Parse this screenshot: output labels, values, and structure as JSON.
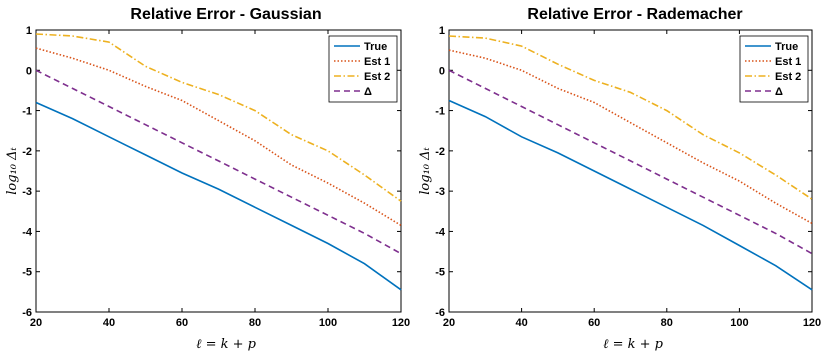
{
  "colors": {
    "True": "#0072BD",
    "Est 1": "#D95319",
    "Est 2": "#EDB120",
    "Δ": "#7E2F8E"
  },
  "chart_data": [
    {
      "type": "line",
      "title": "Relative Error - Gaussian",
      "xlabel": "ℓ = k + p",
      "ylabel": "log₁₀ Δₜ",
      "xlim": [
        20,
        120
      ],
      "ylim": [
        -6,
        1
      ],
      "xticks": [
        20,
        40,
        60,
        80,
        100,
        120
      ],
      "yticks": [
        1,
        0,
        -1,
        -2,
        -3,
        -4,
        -5,
        -6
      ],
      "grid": false,
      "legend_position": "top-right",
      "x": [
        20,
        30,
        40,
        50,
        60,
        70,
        80,
        90,
        100,
        110,
        120
      ],
      "series": [
        {
          "name": "True",
          "values": [
            -0.8,
            -1.2,
            -1.65,
            -2.1,
            -2.55,
            -2.95,
            -3.4,
            -3.85,
            -4.3,
            -4.8,
            -5.45
          ]
        },
        {
          "name": "Est 1",
          "values": [
            0.55,
            0.3,
            0.0,
            -0.4,
            -0.75,
            -1.25,
            -1.75,
            -2.35,
            -2.8,
            -3.3,
            -3.85
          ]
        },
        {
          "name": "Est 2",
          "values": [
            0.9,
            0.85,
            0.7,
            0.1,
            -0.3,
            -0.6,
            -1.0,
            -1.6,
            -2.0,
            -2.6,
            -3.25
          ]
        },
        {
          "name": "Δ",
          "values": [
            0.0,
            -0.45,
            -0.9,
            -1.35,
            -1.8,
            -2.25,
            -2.7,
            -3.15,
            -3.6,
            -4.05,
            -4.55
          ]
        }
      ]
    },
    {
      "type": "line",
      "title": "Relative Error - Rademacher",
      "xlabel": "ℓ = k + p",
      "ylabel": "log₁₀ Δₜ",
      "xlim": [
        20,
        120
      ],
      "ylim": [
        -6,
        1
      ],
      "xticks": [
        20,
        40,
        60,
        80,
        100,
        120
      ],
      "yticks": [
        1,
        0,
        -1,
        -2,
        -3,
        -4,
        -5,
        -6
      ],
      "grid": false,
      "legend_position": "top-right",
      "x": [
        20,
        30,
        40,
        50,
        60,
        70,
        80,
        90,
        100,
        110,
        120
      ],
      "series": [
        {
          "name": "True",
          "values": [
            -0.75,
            -1.15,
            -1.65,
            -2.05,
            -2.5,
            -2.95,
            -3.4,
            -3.85,
            -4.35,
            -4.85,
            -5.45
          ]
        },
        {
          "name": "Est 1",
          "values": [
            0.5,
            0.3,
            0.0,
            -0.45,
            -0.8,
            -1.3,
            -1.8,
            -2.3,
            -2.75,
            -3.3,
            -3.8
          ]
        },
        {
          "name": "Est 2",
          "values": [
            0.85,
            0.8,
            0.6,
            0.15,
            -0.25,
            -0.55,
            -1.0,
            -1.6,
            -2.05,
            -2.6,
            -3.2
          ]
        },
        {
          "name": "Δ",
          "values": [
            0.0,
            -0.45,
            -0.9,
            -1.35,
            -1.8,
            -2.25,
            -2.7,
            -3.15,
            -3.6,
            -4.05,
            -4.55
          ]
        }
      ]
    }
  ]
}
